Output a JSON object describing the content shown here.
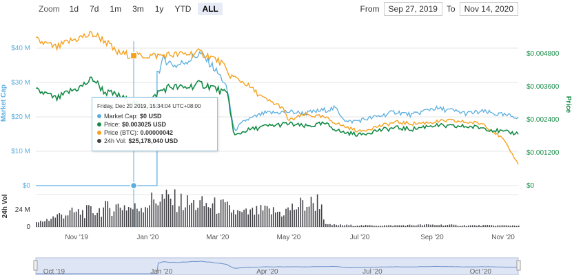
{
  "toolbar": {
    "zoom_label": "Zoom",
    "zoom_options": [
      "1d",
      "7d",
      "1m",
      "3m",
      "1y",
      "YTD",
      "ALL"
    ],
    "active_zoom": "ALL",
    "from_label": "From",
    "from_value": "Sep 27, 2019",
    "to_label": "To",
    "to_value": "Nov 14, 2020"
  },
  "tooltip": {
    "header": "Friday, Dec 20 2019, 15:34:04 UTC+08:00",
    "rows": [
      {
        "label": "Market Cap:",
        "value": "$0 USD",
        "color": "#5aaee0"
      },
      {
        "label": "Price:",
        "value": "$0.003025 USD",
        "color": "#148a45"
      },
      {
        "label": "Price (BTC):",
        "value": "0.00000042",
        "color": "#f6a01c"
      },
      {
        "label": "24h Vol:",
        "value": "$25,178,040 USD",
        "color": "#434348"
      }
    ]
  },
  "colors": {
    "market_cap": "#5aaee0",
    "price_usd": "#148a45",
    "price_btc": "#f6a01c",
    "volume": "#434348",
    "navigator": "#c8d4ec"
  },
  "chart_data": {
    "type": "line",
    "left_axis": {
      "title": "Market Cap",
      "ticks": [
        "$0",
        "$10 M",
        "$20 M",
        "$30 M",
        "$40 M"
      ],
      "range": [
        0,
        40
      ]
    },
    "right_axis": {
      "title": "Price",
      "ticks": [
        "$0",
        "$0.001200",
        "$0.002400",
        "$0.003600",
        "$0.004800"
      ],
      "range": [
        0,
        0.0048
      ]
    },
    "volume_axis": {
      "title": "24h Vol",
      "ticks": [
        "0",
        "24 M"
      ]
    },
    "x_ticks": [
      "Nov '19",
      "Jan '20",
      "Mar '20",
      "May '20",
      "Jul '20",
      "Sep '20",
      "Nov '20"
    ],
    "navigator_ticks": [
      "Oct '19",
      "Jan '20",
      "Apr '20",
      "Jul '20",
      "Oct '20"
    ],
    "x_range": [
      "2019-09-27",
      "2020-11-14"
    ],
    "series": [
      {
        "name": "Market Cap",
        "unit": "USD millions",
        "x": [
          "2019-09-27",
          "2019-12-20",
          "2020-01-09",
          "2020-01-10",
          "2020-01-15",
          "2020-01-25",
          "2020-02-05",
          "2020-02-15",
          "2020-02-25",
          "2020-03-05",
          "2020-03-10",
          "2020-03-15",
          "2020-03-25",
          "2020-04-10",
          "2020-05-01",
          "2020-05-15",
          "2020-06-01",
          "2020-06-10",
          "2020-06-20",
          "2020-07-01",
          "2020-07-15",
          "2020-08-01",
          "2020-08-15",
          "2020-09-01",
          "2020-09-15",
          "2020-10-01",
          "2020-10-15",
          "2020-11-01",
          "2020-11-14"
        ],
        "values": [
          0,
          0,
          0,
          33.0,
          36.8,
          34.8,
          36.5,
          38.5,
          35.0,
          31.0,
          27.0,
          16.0,
          19.0,
          21.0,
          21.5,
          21.0,
          22.0,
          22.5,
          18.5,
          19.0,
          20.0,
          21.5,
          20.5,
          22.5,
          22.0,
          21.0,
          21.5,
          20.5,
          20.0
        ]
      },
      {
        "name": "Price",
        "unit": "USD",
        "x": [
          "2019-09-27",
          "2019-10-05",
          "2019-10-15",
          "2019-10-25",
          "2019-11-05",
          "2019-11-15",
          "2019-11-25",
          "2019-12-05",
          "2019-12-15",
          "2019-12-20",
          "2019-12-30",
          "2020-01-10",
          "2020-01-20",
          "2020-02-01",
          "2020-02-15",
          "2020-02-25",
          "2020-03-05",
          "2020-03-10",
          "2020-03-15",
          "2020-03-25",
          "2020-04-10",
          "2020-05-01",
          "2020-05-15",
          "2020-06-01",
          "2020-06-15",
          "2020-07-01",
          "2020-07-15",
          "2020-08-01",
          "2020-08-15",
          "2020-09-01",
          "2020-09-15",
          "2020-10-01",
          "2020-10-15",
          "2020-11-01",
          "2020-11-14"
        ],
        "values": [
          0.00345,
          0.00335,
          0.00315,
          0.0034,
          0.0036,
          0.0039,
          0.0034,
          0.0033,
          0.0031,
          0.003025,
          0.0028,
          0.0034,
          0.0036,
          0.00355,
          0.0037,
          0.0036,
          0.0034,
          0.0033,
          0.0018,
          0.002,
          0.00215,
          0.00225,
          0.00215,
          0.00225,
          0.00195,
          0.00185,
          0.002,
          0.0021,
          0.00205,
          0.0022,
          0.00215,
          0.00215,
          0.0021,
          0.00195,
          0.0019
        ]
      },
      {
        "name": "Price (BTC)",
        "unit": "BTC",
        "x": [
          "2019-09-27",
          "2019-10-15",
          "2019-10-25",
          "2019-11-05",
          "2019-11-15",
          "2019-11-25",
          "2019-12-05",
          "2019-12-20",
          "2020-01-10",
          "2020-02-01",
          "2020-02-15",
          "2020-02-25",
          "2020-03-05",
          "2020-03-10",
          "2020-03-25",
          "2020-04-10",
          "2020-04-25",
          "2020-05-01",
          "2020-05-15",
          "2020-06-01",
          "2020-06-15",
          "2020-07-01",
          "2020-07-15",
          "2020-08-01",
          "2020-08-15",
          "2020-09-01",
          "2020-09-15",
          "2020-10-01",
          "2020-10-15",
          "2020-11-01",
          "2020-11-14"
        ],
        "values": [
          4.7e-07,
          4.45e-07,
          4.65e-07,
          4.8e-07,
          4.9e-07,
          4.7e-07,
          4.3e-07,
          4.2e-07,
          4.2e-07,
          4.25e-07,
          4.3e-07,
          4.15e-07,
          3.95e-07,
          3.6e-07,
          3.3e-07,
          2.8e-07,
          2.55e-07,
          2.1e-07,
          2.3e-07,
          2.2e-07,
          1.95e-07,
          1.75e-07,
          1.9e-07,
          2.05e-07,
          2e-07,
          2.05e-07,
          2.1e-07,
          2.05e-07,
          2e-07,
          1.5e-07,
          7e-08
        ]
      },
      {
        "name": "24h Vol",
        "unit": "USD millions",
        "x": [
          "2019-09-27",
          "2019-10-20",
          "2019-11-15",
          "2019-12-10",
          "2019-12-20",
          "2020-01-10",
          "2020-01-25",
          "2020-02-05",
          "2020-02-20",
          "2020-03-05",
          "2020-03-20",
          "2020-04-10",
          "2020-04-25",
          "2020-05-10",
          "2020-05-20",
          "2020-05-28",
          "2020-06-01",
          "2020-07-01",
          "2020-08-01",
          "2020-09-01",
          "2020-10-01",
          "2020-11-14"
        ],
        "values": [
          5,
          18,
          22,
          30,
          25.18,
          40,
          36,
          32,
          30,
          28,
          18,
          22,
          20,
          30,
          32,
          38,
          3,
          2,
          2,
          3,
          2,
          2
        ]
      }
    ]
  }
}
